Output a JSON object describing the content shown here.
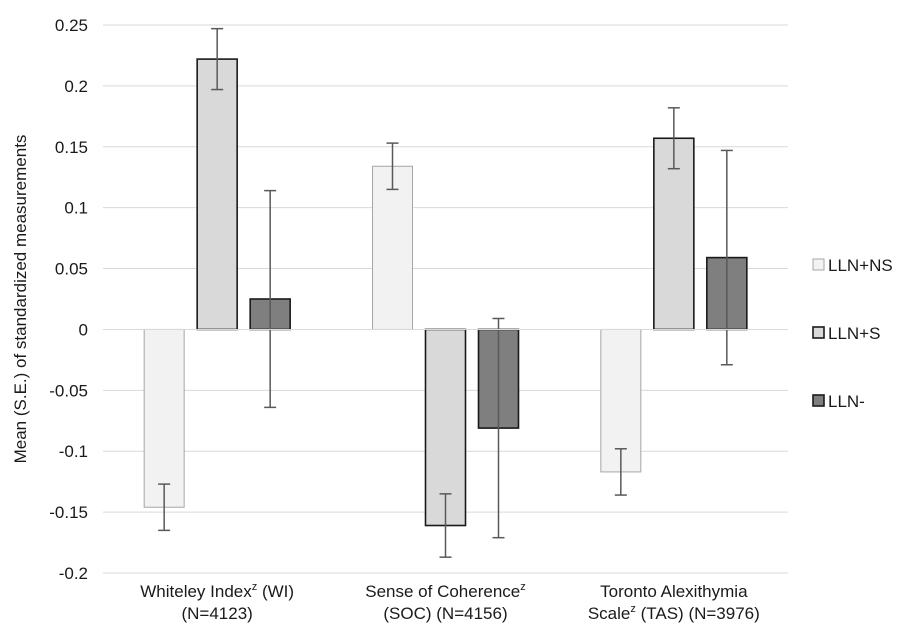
{
  "chart_data": {
    "type": "bar",
    "ylabel": "Mean (S.E.) of standardized measurements",
    "ylim": [
      -0.2,
      0.25
    ],
    "yticks": [
      {
        "value": 0.25,
        "label": "0.25"
      },
      {
        "value": 0.2,
        "label": "0.2"
      },
      {
        "value": 0.15,
        "label": "0.15"
      },
      {
        "value": 0.1,
        "label": "0.1"
      },
      {
        "value": 0.05,
        "label": "0.05"
      },
      {
        "value": 0,
        "label": "0"
      },
      {
        "value": -0.05,
        "label": "-0.05"
      },
      {
        "value": -0.1,
        "label": "-0.1"
      },
      {
        "value": -0.15,
        "label": "-0.15"
      },
      {
        "value": -0.2,
        "label": "-0.2"
      }
    ],
    "grid": true,
    "legend_position": "right",
    "categories": [
      {
        "line1_main": "Whiteley Index",
        "line1_sup": "z",
        "line1_tail": " (WI)",
        "line2": "(N=4123)"
      },
      {
        "line1_main": "Sense of Coherence",
        "line1_sup": "z",
        "line1_tail": "",
        "line2": "(SOC) (N=4156)"
      },
      {
        "line1_main": "Toronto Alexithymia",
        "line1_sup": "",
        "line1_tail": "",
        "line2_main": "Scale",
        "line2_sup": "z",
        "line2_tail": " (TAS) (N=3976)"
      }
    ],
    "series": [
      {
        "name": "LLN+NS",
        "fill": "#f2f2f2",
        "stroke": "#a6a6a6",
        "values": [
          -0.146,
          0.134,
          -0.117
        ],
        "errors": [
          0.019,
          0.019,
          0.019
        ]
      },
      {
        "name": "LLN+S",
        "fill": "#d9d9d9",
        "stroke": "#1a1a1a",
        "values": [
          0.222,
          -0.161,
          0.157
        ],
        "errors": [
          0.025,
          0.026,
          0.025
        ]
      },
      {
        "name": "LLN-",
        "fill": "#7f7f7f",
        "stroke": "#1a1a1a",
        "values": [
          0.025,
          -0.081,
          0.059
        ],
        "errors": [
          0.089,
          0.09,
          0.088
        ]
      }
    ]
  }
}
